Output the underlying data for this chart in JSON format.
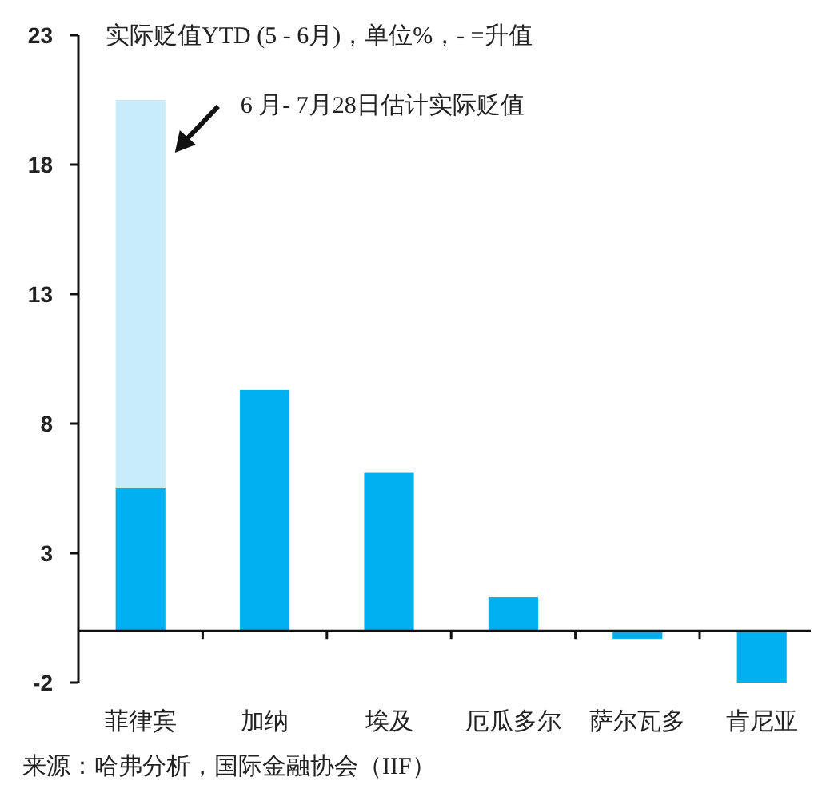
{
  "chart_data": {
    "type": "bar",
    "title": "实际贬值YTD (5 - 6月)，单位%，- =升值",
    "categories": [
      "菲律宾",
      "加纳",
      "埃及",
      "厄瓜多尔",
      "萨尔瓦多",
      "肯尼亚"
    ],
    "stacked": true,
    "series": [
      {
        "color": "#00b0f0",
        "values": [
          5.5,
          9.3,
          6.1,
          1.3,
          -0.3,
          -2.0
        ]
      },
      {
        "name": "6 月- 7月28日估计实际贬值",
        "color": "#c9ecfb",
        "values": [
          15.0,
          null,
          null,
          null,
          null,
          null
        ]
      }
    ],
    "ylim": [
      -2,
      23
    ],
    "yticks": [
      -2,
      3,
      8,
      13,
      18,
      23
    ],
    "grid": false,
    "annotations": [
      "来源：哈弗分析，国际金融协会（IIF）"
    ]
  }
}
